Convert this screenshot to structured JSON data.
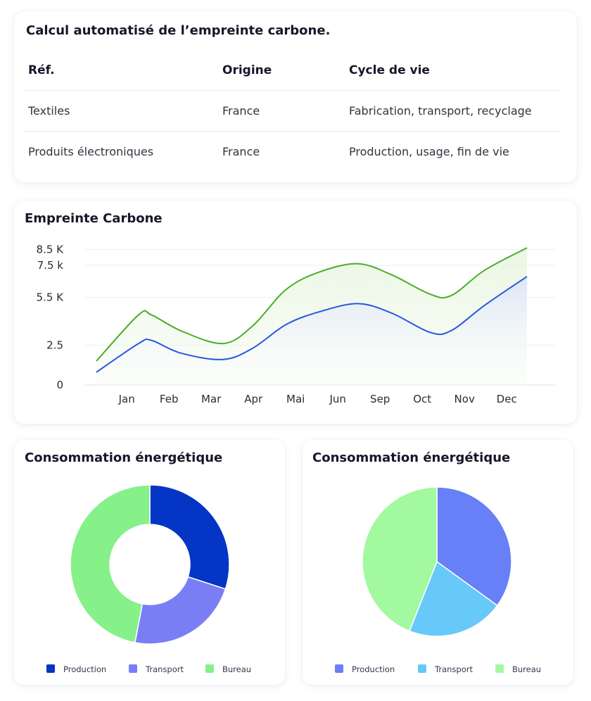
{
  "table_card": {
    "title": "Calcul automatisé de l’empreinte carbone.",
    "headers": [
      "Réf.",
      "Origine",
      "Cycle de vie"
    ],
    "rows": [
      [
        "Textiles",
        "France",
        "Fabrication, transport, recyclage"
      ],
      [
        "Produits électroniques",
        "France",
        "Production, usage, fin de vie"
      ]
    ]
  },
  "chart_data": [
    {
      "type": "area",
      "title": "Empreinte Carbone",
      "categories": [
        "Jan",
        "Feb",
        "Mar",
        "Apr",
        "Mai",
        "Jun",
        "Sep",
        "Oct",
        "Nov",
        "Dec"
      ],
      "y_ticks": [
        {
          "value": 0,
          "label": "0"
        },
        {
          "value": 2.5,
          "label": "2.5"
        },
        {
          "value": 5.5,
          "label": "5.5 K"
        },
        {
          "value": 7.5,
          "label": "7.5 k"
        },
        {
          "value": 8.5,
          "label": "8.5 K"
        }
      ],
      "series": [
        {
          "x": [
            0,
            1,
            1.3,
            2,
            3,
            3.7,
            4.5,
            5.3,
            6.2,
            7,
            7.9,
            8.4,
            9.2,
            10.2
          ],
          "values": [
            1.5,
            4.4,
            4.4,
            3.4,
            2.6,
            3.7,
            6.0,
            7.1,
            7.6,
            6.9,
            5.7,
            5.6,
            7.2,
            8.6
          ],
          "color": "#4aad2a"
        },
        {
          "x": [
            0,
            1,
            1.3,
            2,
            3,
            3.7,
            4.5,
            5.3,
            6.2,
            7,
            7.9,
            8.4,
            9.2,
            10.2
          ],
          "values": [
            0.8,
            2.6,
            2.8,
            2.0,
            1.6,
            2.3,
            3.8,
            4.6,
            5.1,
            4.5,
            3.3,
            3.4,
            5.0,
            6.8
          ],
          "color": "#2857e0"
        }
      ],
      "ylim": [
        0,
        9.0
      ],
      "grid": true
    },
    {
      "type": "pie",
      "variant": "donut",
      "title": "Consommation énergétique",
      "labels": [
        "Production",
        "Transport",
        "Bureau"
      ],
      "values": [
        30,
        23,
        47
      ],
      "colors": [
        "#0535c4",
        "#7a7ef5",
        "#86f089"
      ],
      "legend": "bottom"
    },
    {
      "type": "pie",
      "title": "Consommation énergétique",
      "labels": [
        "Production",
        "Transport",
        "Bureau"
      ],
      "values": [
        35,
        21,
        44
      ],
      "colors": [
        "#6780f7",
        "#67c8fa",
        "#a2f99f"
      ],
      "legend": "bottom"
    }
  ]
}
